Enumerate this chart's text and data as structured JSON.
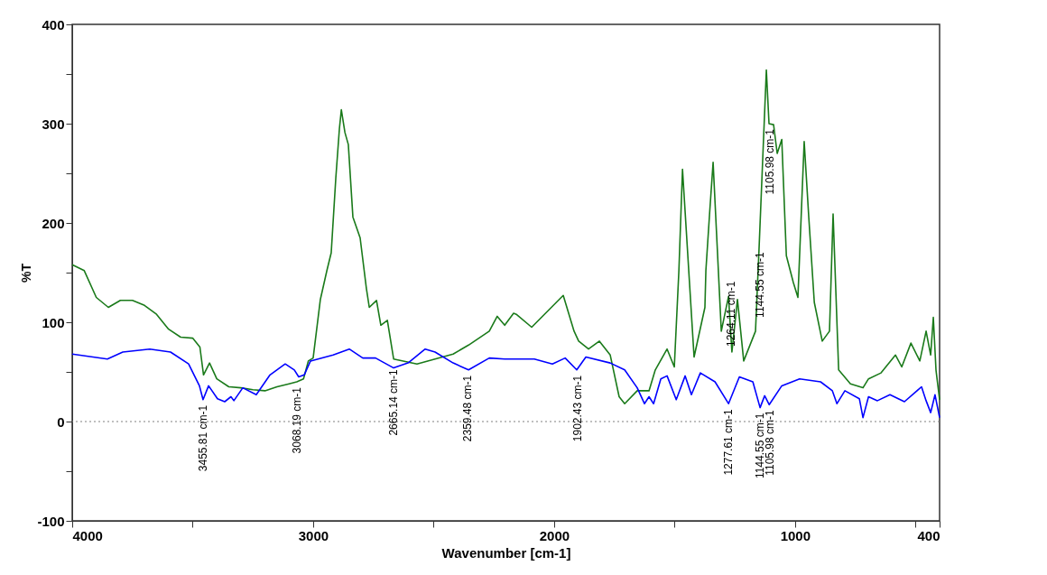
{
  "chart_data": {
    "type": "line",
    "xlabel": "Wavenumber [cm-1]",
    "ylabel": "%T",
    "xlim": [
      4000,
      400
    ],
    "ylim": [
      -100,
      400
    ],
    "xticks": [
      4000,
      {
        "value": 3500,
        "label": null
      },
      3000,
      {
        "value": 2500,
        "label": null
      },
      2000,
      {
        "value": 1500,
        "label": null
      },
      1000,
      {
        "value": 500,
        "label": null
      },
      400
    ],
    "yticks": [
      -100,
      {
        "value": -50,
        "label": null
      },
      0,
      {
        "value": 50,
        "label": null
      },
      100,
      {
        "value": 150,
        "label": null
      },
      200,
      {
        "value": 250,
        "label": null
      },
      300,
      {
        "value": 350,
        "label": null
      },
      400
    ],
    "grid": false,
    "legend": false,
    "line_style": "solid",
    "series": [
      {
        "color": "#1a7a1a",
        "x": [
          4000,
          3950,
          3900,
          3850,
          3800,
          3750,
          3700,
          3650,
          3600,
          3550,
          3500,
          3470,
          3455,
          3430,
          3400,
          3350,
          3300,
          3250,
          3200,
          3150,
          3100,
          3068,
          3040,
          3020,
          3000,
          2970,
          2943,
          2925,
          2906,
          2891,
          2883,
          2868,
          2854,
          2835,
          2805,
          2779,
          2767,
          2737,
          2719,
          2692,
          2666,
          2569,
          2419,
          2355,
          2269,
          2236,
          2205,
          2168,
          2157,
          2093,
          1962,
          1917,
          1898,
          1857,
          1812,
          1767,
          1730,
          1707,
          1655,
          1606,
          1580,
          1531,
          1501,
          1482,
          1467,
          1419,
          1374,
          1370,
          1355,
          1340,
          1306,
          1276,
          1262,
          1239,
          1213,
          1164,
          1149,
          1119,
          1108,
          1089,
          1074,
          1055,
          1036,
          1007,
          988,
          962,
          943,
          920,
          887,
          857,
          842,
          819,
          770,
          718,
          695,
          643,
          583,
          557,
          519,
          482,
          456,
          437,
          426,
          415,
          400
        ],
        "values": [
          158,
          152,
          125,
          115,
          122,
          122,
          117,
          108,
          93,
          85,
          84,
          75,
          47,
          59,
          43,
          35,
          34,
          32,
          31,
          35,
          38,
          40,
          43,
          61,
          64,
          123,
          152,
          170,
          245,
          295,
          314,
          291,
          279,
          206,
          185,
          134,
          115,
          122,
          97,
          102,
          63,
          58,
          68,
          77,
          91,
          106,
          97,
          109,
          108,
          95,
          127,
          91,
          81,
          73,
          81,
          67,
          25,
          18,
          31,
          31,
          52,
          73,
          55,
          152,
          254,
          65,
          115,
          152,
          208,
          261,
          91,
          126,
          70,
          123,
          61,
          91,
          176,
          354,
          300,
          299,
          270,
          284,
          167,
          140,
          125,
          282,
          206,
          120,
          81,
          91,
          209,
          52,
          38,
          34,
          43,
          49,
          67,
          55,
          79,
          61,
          91,
          67,
          105,
          52,
          22
        ]
      },
      {
        "color": "#0000ff",
        "x": [
          4000,
          3854,
          3790,
          3678,
          3592,
          3517,
          3472,
          3457,
          3434,
          3397,
          3367,
          3341,
          3329,
          3292,
          3236,
          3179,
          3116,
          3078,
          3060,
          3037,
          3011,
          2917,
          2850,
          2794,
          2741,
          2666,
          2606,
          2535,
          2494,
          2419,
          2355,
          2269,
          2205,
          2082,
          2007,
          1954,
          1906,
          1868,
          1767,
          1707,
          1655,
          1625,
          1606,
          1587,
          1557,
          1531,
          1493,
          1456,
          1430,
          1393,
          1332,
          1276,
          1231,
          1175,
          1145,
          1126,
          1107,
          1055,
          981,
          894,
          845,
          826,
          793,
          733,
          718,
          695,
          658,
          606,
          546,
          475,
          456,
          437,
          419,
          400
        ],
        "values": [
          68,
          63,
          70,
          73,
          70,
          58,
          36,
          22,
          36,
          23,
          20,
          25,
          21,
          34,
          27,
          47,
          58,
          52,
          45,
          47,
          61,
          67,
          73,
          64,
          64,
          54,
          59,
          73,
          70,
          59,
          52,
          64,
          63,
          63,
          58,
          64,
          52,
          65,
          59,
          52,
          34,
          18,
          25,
          18,
          43,
          46,
          22,
          46,
          27,
          49,
          40,
          18,
          45,
          40,
          14,
          26,
          17,
          36,
          43,
          40,
          31,
          18,
          31,
          23,
          4,
          25,
          21,
          27,
          20,
          35,
          21,
          9,
          27,
          4
        ]
      }
    ],
    "ref_lines": [
      {
        "axis": "y",
        "value": 0,
        "color": "#808080",
        "line_style": "dotted"
      }
    ],
    "annotations": [
      {
        "text": "3455.81 cm-1",
        "x": 3455.81,
        "y": 22
      },
      {
        "text": "3068.19 cm-1",
        "x": 3068.19,
        "y": 40
      },
      {
        "text": "2665.14 cm-1",
        "x": 2665.14,
        "y": 58
      },
      {
        "text": "2359.48 cm-1",
        "x": 2359.48,
        "y": 52
      },
      {
        "text": "1902.43 cm-1",
        "x": 1902.43,
        "y": 52
      },
      {
        "text": "1277.61 cm-1",
        "x": 1277.61,
        "y": 18
      },
      {
        "text": "1264.11 cm-1",
        "x": 1264.11,
        "y": 70
      },
      {
        "text": "1144.55 cm-1",
        "x": 1144.55,
        "y": 14
      },
      {
        "text": "1105.98 cm-1",
        "x": 1105.98,
        "y": 17
      },
      {
        "text": "1144.55 cm-1",
        "x": 1144.55,
        "y": 176
      },
      {
        "text": "1105.98 cm-1",
        "x": 1105.98,
        "y": 300
      }
    ]
  }
}
